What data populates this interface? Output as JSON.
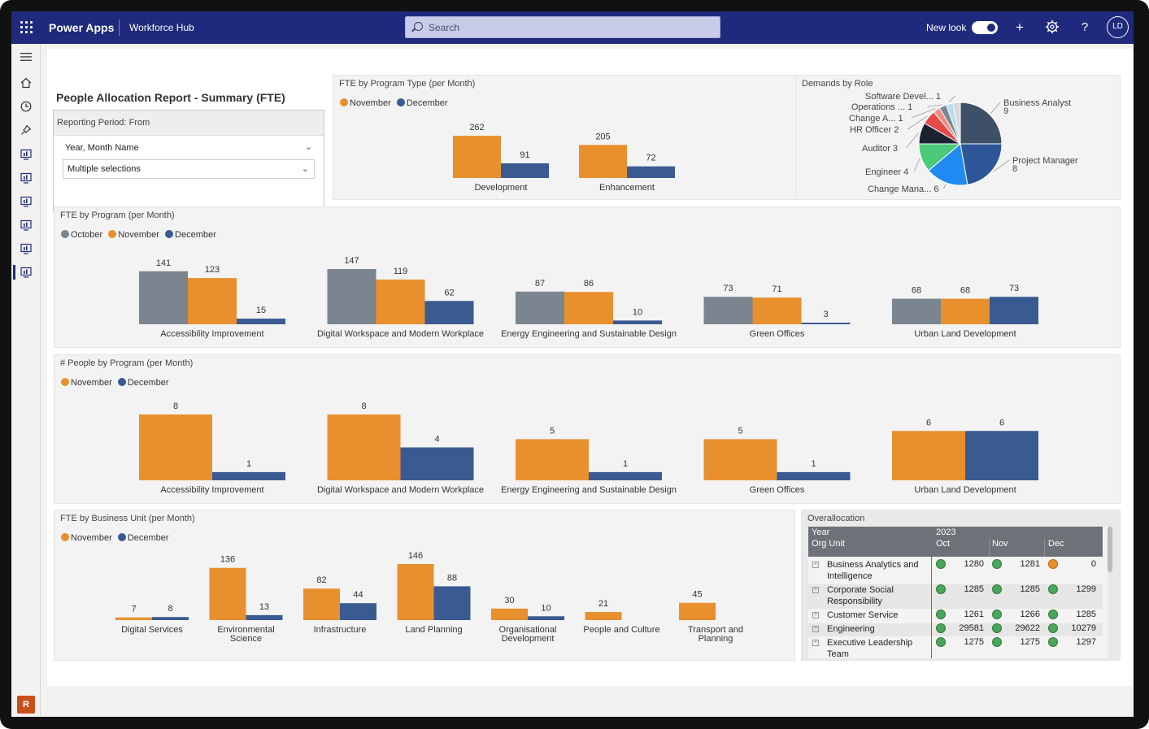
{
  "topbar": {
    "brand": "Power Apps",
    "app_name": "Workforce Hub",
    "search_placeholder": "Search",
    "new_look_label": "New look",
    "avatar_initials": "LD"
  },
  "leftnav": {
    "icons": [
      "hamburger-icon",
      "home-icon",
      "recent-icon",
      "pin-icon",
      "report-icon",
      "report-icon",
      "report-icon",
      "report-icon",
      "report-icon",
      "report-icon"
    ],
    "badge": "R"
  },
  "colors": {
    "october": "#7b8590",
    "november": "#e8902d",
    "december": "#3a5a92",
    "topbar": "#1f2a7c",
    "status_green": "#4aa65a",
    "status_orange": "#e8902d"
  },
  "report": {
    "title": "People Allocation Report - Summary (FTE)",
    "slicer": {
      "header": "Reporting Period: From",
      "field": "Year, Month Name",
      "value": "Multiple selections"
    }
  },
  "legends": {
    "october": "October",
    "november": "November",
    "december": "December"
  },
  "chart_data": [
    {
      "id": "fte_by_program_type",
      "type": "bar",
      "title": "FTE by Program Type (per Month)",
      "categories": [
        "Development",
        "Enhancement"
      ],
      "series": [
        {
          "name": "November",
          "values": [
            262,
            205
          ]
        },
        {
          "name": "December",
          "values": [
            91,
            72
          ]
        }
      ]
    },
    {
      "id": "demands_by_role",
      "type": "pie",
      "title": "Demands by Role",
      "labels": [
        "Business Analyst",
        "Project Manager",
        "Change Mana...",
        "Engineer",
        "Auditor",
        "HR Officer",
        "Change A...",
        "Operations ...",
        "Software Devel...",
        ""
      ],
      "values": [
        9,
        8,
        6,
        4,
        3,
        2,
        1,
        1,
        1,
        1
      ],
      "colors": [
        "#3d5068",
        "#2c5697",
        "#1f8af0",
        "#4cc979",
        "#1d2233",
        "#e34a4a",
        "#f08b82",
        "#7b8893",
        "#b9ddf2",
        "#d8d8d8"
      ]
    },
    {
      "id": "fte_by_program",
      "type": "bar",
      "title": "FTE by Program (per Month)",
      "categories": [
        "Accessibility Improvement",
        "Digital Workspace and Modern Workplace",
        "Energy Engineering and Sustainable Design",
        "Green Offices",
        "Urban Land Development"
      ],
      "series": [
        {
          "name": "October",
          "values": [
            141,
            147,
            87,
            73,
            68
          ]
        },
        {
          "name": "November",
          "values": [
            123,
            119,
            86,
            71,
            68
          ]
        },
        {
          "name": "December",
          "values": [
            15,
            62,
            10,
            3,
            73
          ]
        }
      ]
    },
    {
      "id": "people_by_program",
      "type": "bar",
      "title": "# People by Program (per Month)",
      "categories": [
        "Accessibility Improvement",
        "Digital Workspace and Modern Workplace",
        "Energy Engineering and Sustainable Design",
        "Green Offices",
        "Urban Land Development"
      ],
      "series": [
        {
          "name": "November",
          "values": [
            8,
            8,
            5,
            5,
            6
          ]
        },
        {
          "name": "December",
          "values": [
            1,
            4,
            1,
            1,
            6
          ]
        }
      ]
    },
    {
      "id": "fte_by_business_unit",
      "type": "bar",
      "title": "FTE by Business Unit (per Month)",
      "categories": [
        "Digital Services",
        "Environmental Science",
        "Infrastructure",
        "Land Planning",
        "Organisational Development",
        "People and Culture",
        "Transport and Planning"
      ],
      "category_lines": [
        [
          "Digital Services"
        ],
        [
          "Environmental",
          "Science"
        ],
        [
          "Infrastructure"
        ],
        [
          "Land Planning"
        ],
        [
          "Organisational",
          "Development"
        ],
        [
          "People and Culture"
        ],
        [
          "Transport and",
          "Planning"
        ]
      ],
      "series": [
        {
          "name": "November",
          "values": [
            7,
            136,
            82,
            146,
            30,
            21,
            45
          ]
        },
        {
          "name": "December",
          "values": [
            8,
            13,
            44,
            88,
            10,
            null,
            null
          ]
        }
      ]
    }
  ],
  "overallocation": {
    "title": "Overallocation",
    "header_year_label": "Year",
    "header_year": "2023",
    "header_org_label": "Org Unit",
    "months": [
      "Oct",
      "Nov",
      "Dec"
    ],
    "rows": [
      {
        "label": "Business Analytics and Intelligence",
        "lines": [
          "Business Analytics and",
          "Intelligence"
        ],
        "values": [
          "1280",
          "1281",
          "0"
        ],
        "status": [
          "green",
          "green",
          "orange"
        ]
      },
      {
        "label": "Corporate Social Responsibility",
        "lines": [
          "Corporate Social",
          "Responsibility"
        ],
        "values": [
          "1285",
          "1285",
          "1299"
        ],
        "status": [
          "green",
          "green",
          "green"
        ]
      },
      {
        "label": "Customer Service",
        "lines": [
          "Customer Service"
        ],
        "values": [
          "1261",
          "1266",
          "1285"
        ],
        "status": [
          "green",
          "green",
          "green"
        ]
      },
      {
        "label": "Engineering",
        "lines": [
          "Engineering"
        ],
        "values": [
          "29581",
          "29622",
          "10279"
        ],
        "status": [
          "green",
          "green",
          "green"
        ]
      },
      {
        "label": "Executive Leadership Team",
        "lines": [
          "Executive Leadership",
          "Team"
        ],
        "values": [
          "1275",
          "1275",
          "1297"
        ],
        "status": [
          "green",
          "green",
          "green"
        ]
      }
    ]
  }
}
